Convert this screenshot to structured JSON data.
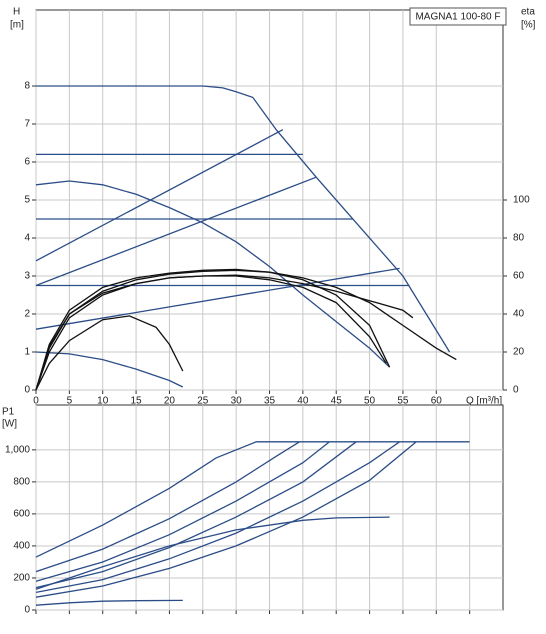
{
  "chart_data": [
    {
      "type": "line",
      "title": "MAGNA1 100-80 F",
      "y_label": "H",
      "y_unit": "[m]",
      "y2_label": "eta",
      "y2_unit": "[%]",
      "x_label": "Q [m³/h]",
      "xlim": [
        0,
        70
      ],
      "xticks": [
        0,
        5,
        10,
        15,
        20,
        25,
        30,
        35,
        40,
        45,
        50,
        55,
        60
      ],
      "ylim": [
        0,
        10
      ],
      "yticks": [
        0,
        1,
        2,
        3,
        4,
        5,
        6,
        7,
        8
      ],
      "y2lim": [
        0,
        200
      ],
      "y2ticks": [
        0,
        20,
        40,
        60,
        80,
        100
      ],
      "grid": true,
      "series": [
        {
          "color": "#2b4d87",
          "x": [
            0,
            10,
            25,
            28,
            30,
            32.5,
            36,
            42,
            49,
            55,
            62
          ],
          "values": [
            8,
            8,
            8,
            7.95,
            7.85,
            7.7,
            6.85,
            5.6,
            4.2,
            3,
            1
          ]
        },
        {
          "color": "#2b4d87",
          "x": [
            0,
            40
          ],
          "values": [
            6.2,
            6.2
          ]
        },
        {
          "color": "#2b4d87",
          "x": [
            0,
            47.5
          ],
          "values": [
            4.5,
            4.5
          ]
        },
        {
          "color": "#2b4d87",
          "x": [
            0,
            56
          ],
          "values": [
            2.75,
            2.75
          ]
        },
        {
          "color": "#2b4d87",
          "x": [
            0,
            37
          ],
          "values": [
            3.4,
            6.85
          ]
        },
        {
          "color": "#2b4d87",
          "x": [
            0,
            42
          ],
          "values": [
            2.75,
            5.6
          ]
        },
        {
          "color": "#2b4d87",
          "x": [
            0,
            54.5
          ],
          "values": [
            1.6,
            3.2
          ]
        },
        {
          "color": "#2b4d87",
          "x": [
            0,
            5,
            10,
            15,
            20,
            25,
            30,
            35,
            40,
            45,
            50,
            53
          ],
          "values": [
            5.4,
            5.5,
            5.4,
            5.15,
            4.8,
            4.4,
            3.9,
            3.25,
            2.5,
            1.8,
            1.1,
            0.6
          ]
        },
        {
          "color": "#2b4d87",
          "x": [
            0,
            5,
            10,
            15,
            20,
            22
          ],
          "values": [
            1,
            0.95,
            0.8,
            0.55,
            0.25,
            0.08
          ]
        },
        {
          "color": "#111111",
          "axis": "y2",
          "x": [
            0,
            2,
            5,
            10,
            15,
            20,
            25,
            30,
            35,
            40,
            45,
            50,
            55,
            60,
            63
          ],
          "values": [
            0,
            22,
            40,
            52,
            58,
            61,
            62.5,
            63,
            62,
            59,
            54,
            46,
            34,
            22,
            16
          ]
        },
        {
          "color": "#111111",
          "axis": "y2",
          "x": [
            0,
            2,
            5,
            10,
            15,
            20,
            25,
            30,
            35,
            40,
            45,
            50,
            53
          ],
          "values": [
            0,
            24,
            42,
            54,
            59,
            61.5,
            63,
            63.5,
            62,
            58,
            50,
            34,
            12
          ]
        },
        {
          "color": "#111111",
          "axis": "y2",
          "x": [
            0,
            2,
            5,
            10,
            15,
            20,
            25,
            30,
            35,
            40,
            45,
            50,
            52.5
          ],
          "values": [
            0,
            20,
            38,
            50,
            56,
            59,
            60,
            60,
            58,
            54,
            46,
            28,
            14
          ]
        },
        {
          "color": "#111111",
          "axis": "y2",
          "x": [
            0,
            2,
            5,
            10,
            15,
            20,
            25,
            30,
            35,
            40,
            45,
            50,
            55,
            56.5
          ],
          "values": [
            0,
            23,
            40,
            51,
            56,
            59,
            60,
            60.5,
            59,
            56,
            52,
            47,
            42,
            38
          ]
        },
        {
          "color": "#111111",
          "axis": "y2",
          "x": [
            0,
            2,
            5,
            10,
            14,
            18,
            20,
            22
          ],
          "values": [
            0,
            14,
            26,
            37,
            39,
            33,
            24,
            10
          ]
        }
      ]
    },
    {
      "type": "line",
      "y_label": "P1",
      "y_unit": "[W]",
      "xlim": [
        0,
        70
      ],
      "xticks": [
        0,
        5,
        10,
        15,
        20,
        25,
        30,
        35,
        40,
        45,
        50,
        55,
        60,
        65
      ],
      "show_xtick_labels": false,
      "ylim": [
        0,
        1280
      ],
      "yticks": [
        0,
        200,
        400,
        600,
        800,
        {
          "value": 1000,
          "label": "1,000"
        }
      ],
      "grid": true,
      "series": [
        {
          "color": "#2b4d87",
          "x": [
            0,
            10,
            20,
            27,
            33,
            65
          ],
          "values": [
            330,
            530,
            760,
            950,
            1050,
            1050
          ]
        },
        {
          "color": "#2b4d87",
          "x": [
            0,
            10,
            20,
            30,
            36,
            39.5
          ],
          "values": [
            240,
            380,
            570,
            800,
            960,
            1050
          ]
        },
        {
          "color": "#2b4d87",
          "x": [
            0,
            10,
            20,
            30,
            40,
            44
          ],
          "values": [
            180,
            300,
            470,
            680,
            920,
            1050
          ]
        },
        {
          "color": "#2b4d87",
          "x": [
            0,
            10,
            20,
            30,
            40,
            48
          ],
          "values": [
            140,
            240,
            390,
            580,
            800,
            1050
          ]
        },
        {
          "color": "#2b4d87",
          "x": [
            0,
            10,
            20,
            30,
            40,
            50,
            54.5
          ],
          "values": [
            110,
            190,
            320,
            480,
            680,
            920,
            1050
          ]
        },
        {
          "color": "#2b4d87",
          "x": [
            0,
            10,
            20,
            30,
            40,
            50,
            57
          ],
          "values": [
            80,
            150,
            260,
            400,
            580,
            810,
            1050
          ]
        },
        {
          "color": "#2b4d87",
          "x": [
            0,
            10,
            20,
            30,
            40,
            45,
            53
          ],
          "values": [
            130,
            270,
            400,
            500,
            560,
            575,
            580
          ]
        },
        {
          "color": "#2b4d87",
          "x": [
            0,
            5,
            10,
            15,
            22
          ],
          "values": [
            30,
            45,
            55,
            58,
            60
          ]
        }
      ]
    }
  ]
}
